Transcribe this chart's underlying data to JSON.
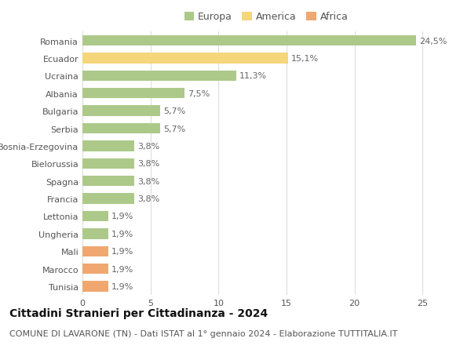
{
  "categories": [
    "Romania",
    "Ecuador",
    "Ucraina",
    "Albania",
    "Bulgaria",
    "Serbia",
    "Bosnia-Erzegovina",
    "Bielorussia",
    "Spagna",
    "Francia",
    "Lettonia",
    "Ungheria",
    "Mali",
    "Marocco",
    "Tunisia"
  ],
  "values": [
    24.5,
    15.1,
    11.3,
    7.5,
    5.7,
    5.7,
    3.8,
    3.8,
    3.8,
    3.8,
    1.9,
    1.9,
    1.9,
    1.9,
    1.9
  ],
  "continents": [
    "Europa",
    "America",
    "Europa",
    "Europa",
    "Europa",
    "Europa",
    "Europa",
    "Europa",
    "Europa",
    "Europa",
    "Europa",
    "Europa",
    "Africa",
    "Africa",
    "Africa"
  ],
  "labels": [
    "24,5%",
    "15,1%",
    "11,3%",
    "7,5%",
    "5,7%",
    "5,7%",
    "3,8%",
    "3,8%",
    "3,8%",
    "3,8%",
    "1,9%",
    "1,9%",
    "1,9%",
    "1,9%",
    "1,9%"
  ],
  "colors": {
    "Europa": "#adc98a",
    "America": "#f5d67a",
    "Africa": "#f0a870"
  },
  "legend_colors": [
    "Europa",
    "America",
    "Africa"
  ],
  "title": "Cittadini Stranieri per Cittadinanza - 2024",
  "subtitle": "COMUNE DI LAVARONE (TN) - Dati ISTAT al 1° gennaio 2024 - Elaborazione TUTTITALIA.IT",
  "xlim": [
    0,
    27
  ],
  "xticks": [
    0,
    5,
    10,
    15,
    20,
    25
  ],
  "background_color": "#ffffff",
  "grid_color": "#dddddd",
  "bar_height": 0.6,
  "title_fontsize": 10,
  "subtitle_fontsize": 8,
  "label_fontsize": 8,
  "tick_fontsize": 8,
  "legend_fontsize": 9
}
